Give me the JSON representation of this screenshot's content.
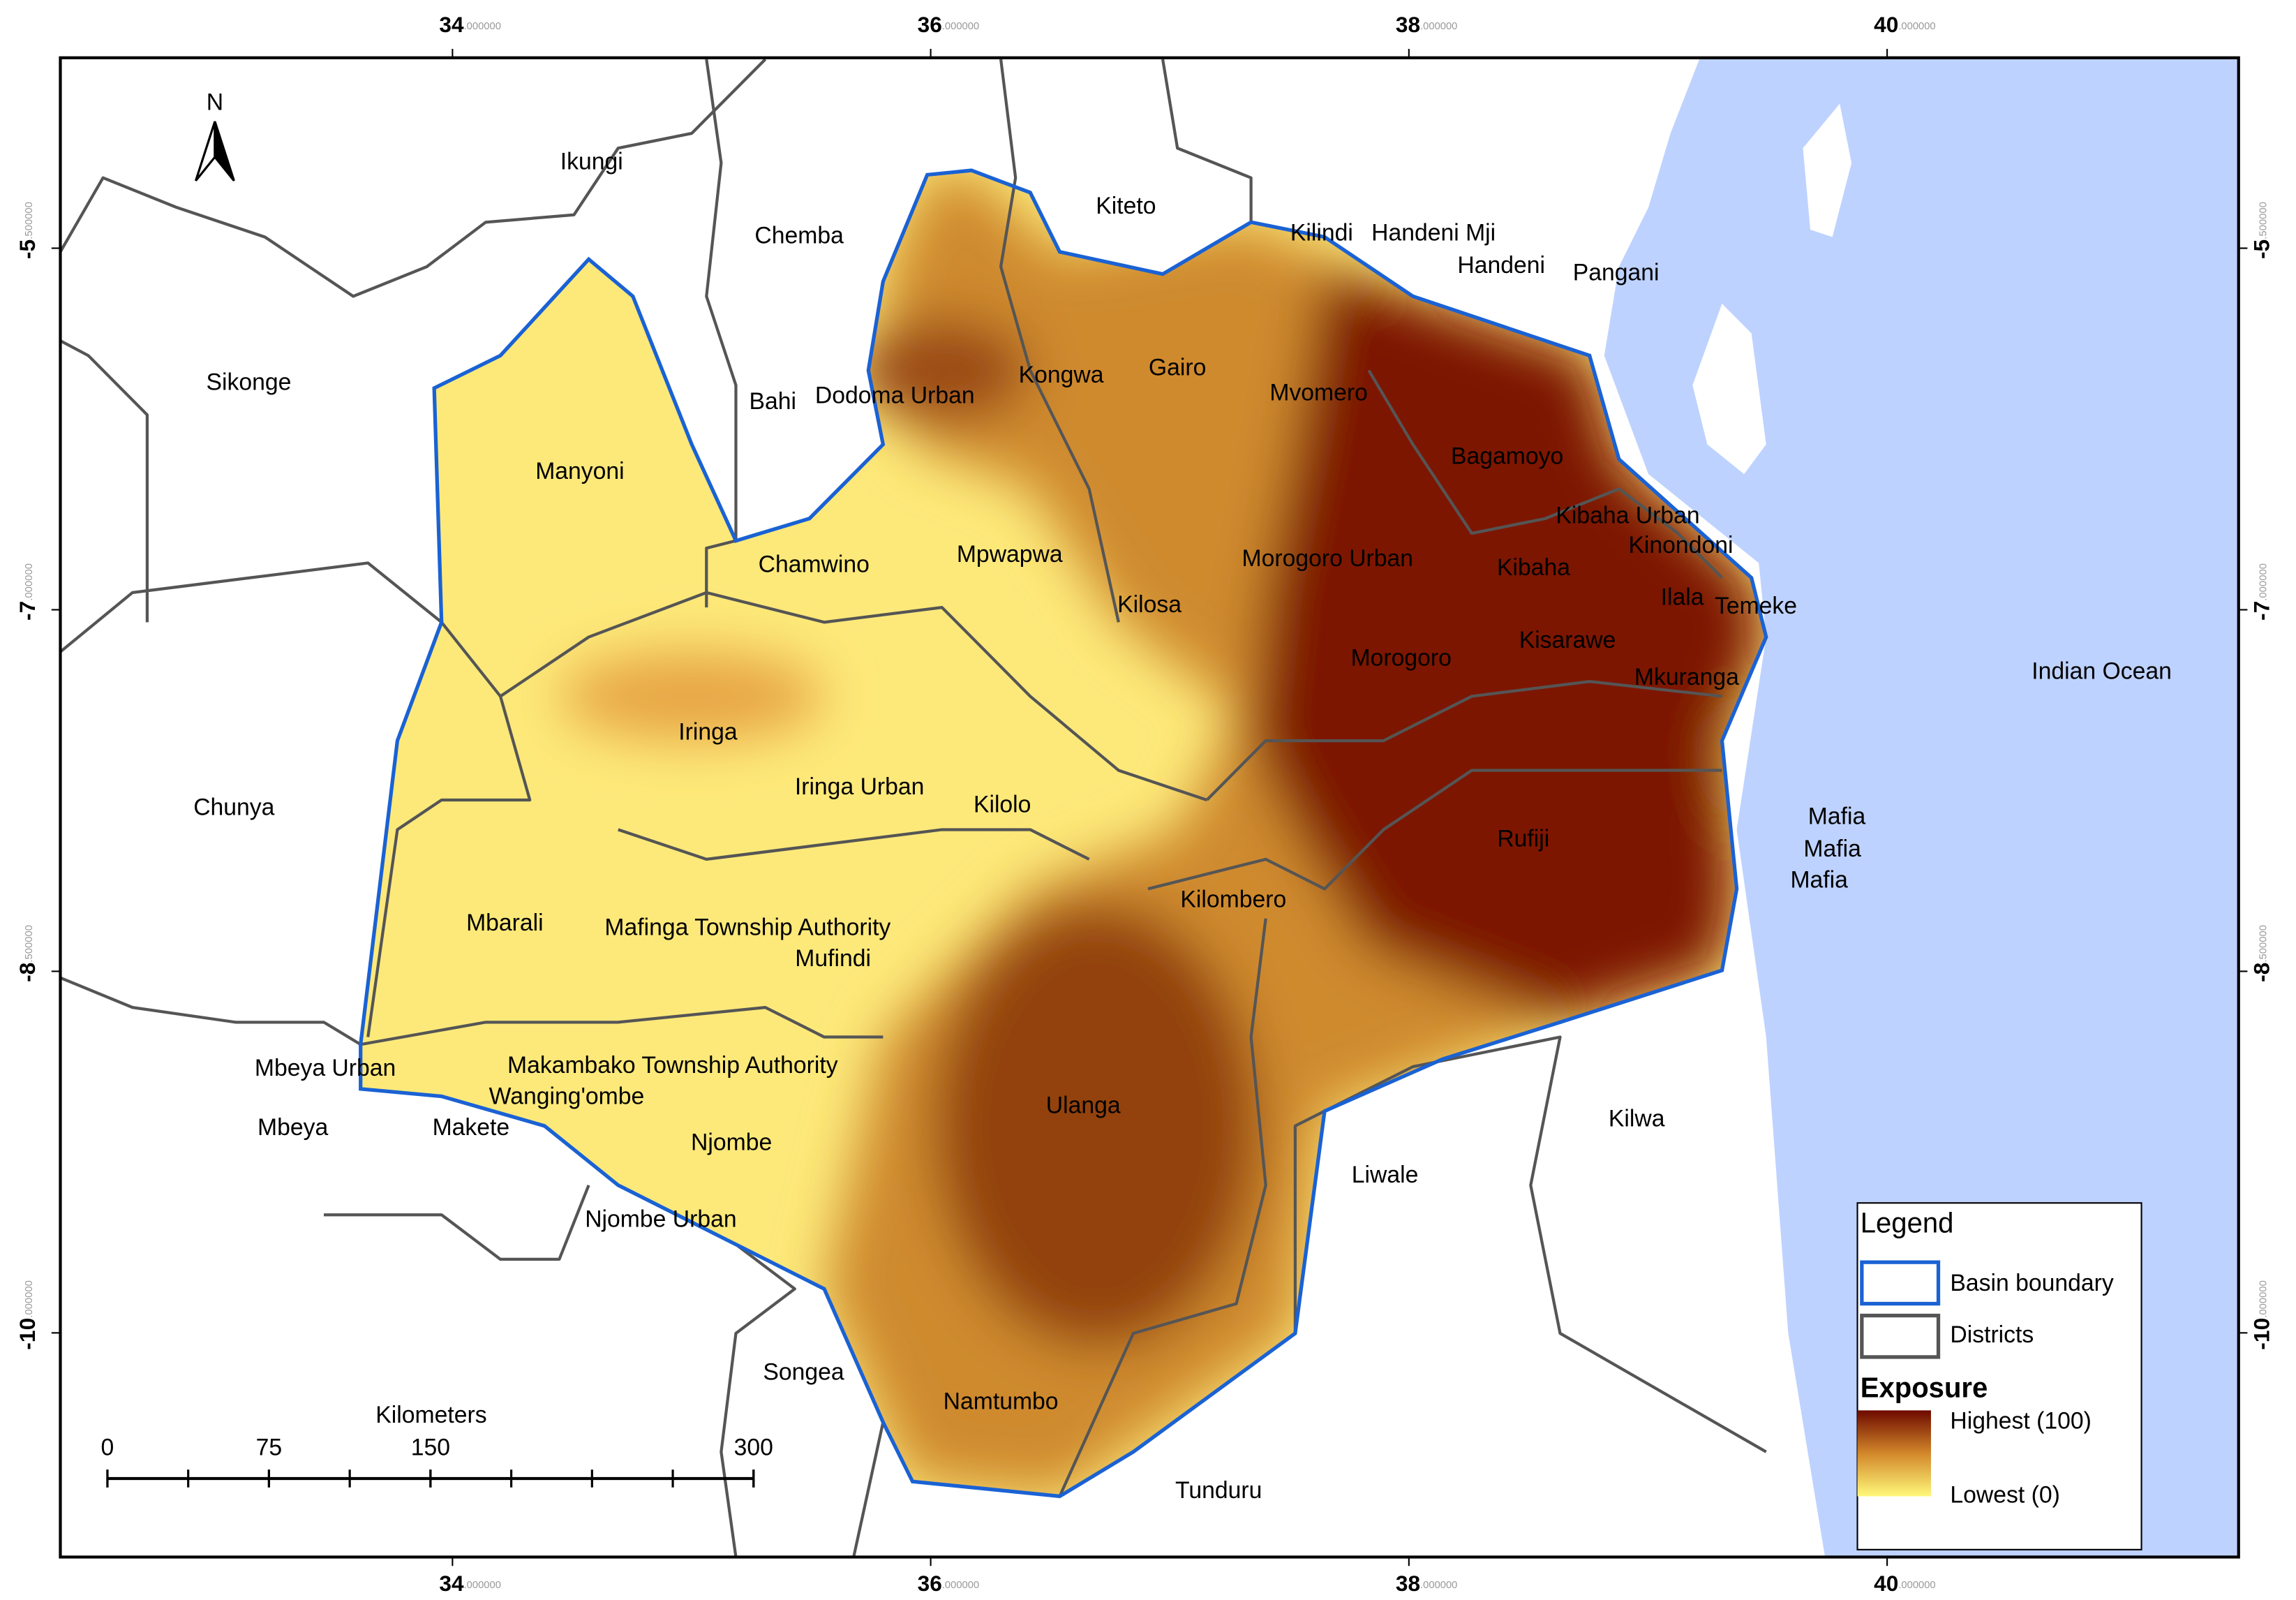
{
  "map": {
    "type": "map",
    "lon_range": [
      32.36,
      41.47
    ],
    "lat_range": [
      -10.93,
      -4.71
    ],
    "lon_ticks": [
      {
        "value": 34,
        "label": "34.000000"
      },
      {
        "value": 36,
        "label": "36.000000"
      },
      {
        "value": 38,
        "label": "38.000000"
      },
      {
        "value": 40,
        "label": "40.000000"
      }
    ],
    "lat_ticks": [
      {
        "value": -5.5,
        "label": "-5.500000"
      },
      {
        "value": -7,
        "label": "-7.000000"
      },
      {
        "value": -8.5,
        "label": "-8.500000"
      },
      {
        "value": -10,
        "label": "-10.000000"
      }
    ],
    "north_arrow": "N",
    "ocean_label": "Indian Ocean",
    "districts": [
      "Ikungi",
      "Chemba",
      "Kiteto",
      "Kilindi",
      "Handeni Mji",
      "Handeni",
      "Pangani",
      "Sikonge",
      "Bahi",
      "Dodoma Urban",
      "Kongwa",
      "Gairo",
      "Mvomero",
      "Manyoni",
      "Bagamoyo",
      "Kibaha Urban",
      "Kinondoni",
      "Chamwino",
      "Mpwapwa",
      "Morogoro Urban",
      "Kibaha",
      "Ilala",
      "Temeke",
      "Kilosa",
      "Morogoro",
      "Kisarawe",
      "Mkuranga",
      "Iringa",
      "Iringa Urban",
      "Kilolo",
      "Chunya",
      "Mafia",
      "Mafia",
      "Mafia",
      "Rufiji",
      "Kilombero",
      "Mbarali",
      "Mafinga Township Authority",
      "Mufindi",
      "Mbeya Urban",
      "Makambako Township Authority",
      "Wanging'ombe",
      "Ulanga",
      "Kilwa",
      "Mbeya",
      "Makete",
      "Njombe",
      "Liwale",
      "Njombe Urban",
      "Songea",
      "Namtumbo",
      "Tunduru"
    ],
    "scale_bar": {
      "title": "Kilometers",
      "ticks": [
        0,
        75,
        150,
        300
      ]
    },
    "legend": {
      "title": "Legend",
      "items": [
        "Basin boundary",
        "Districts"
      ],
      "exposure_title": "Exposure",
      "high": "Highest (100)",
      "low": "Lowest (0)"
    }
  }
}
